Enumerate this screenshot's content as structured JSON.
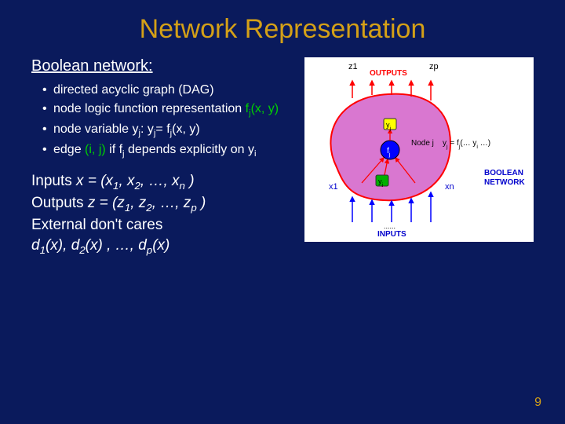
{
  "title": "Network Representation",
  "heading": "Boolean network:",
  "bullets": {
    "b0": "directed acyclic graph (DAG)",
    "b1_pre": "node logic function representation ",
    "b1_fj": "f",
    "b1_fj_sub": "j",
    "b1_fj_args": "(x, y)",
    "b2_pre": "node variable ",
    "b2_yj": "y",
    "b2_yj_sub": "j",
    "b2_mid": ": y",
    "b2_mid_sub": "j",
    "b2_eq": "= f",
    "b2_eq_sub": "j",
    "b2_args": "(x, y)",
    "b3_pre": "edge ",
    "b3_edge": "(i, j)",
    "b3_if": " if f",
    "b3_if_sub": "j",
    "b3_dep": " depends explicitly on y",
    "b3_dep_sub": "i"
  },
  "io": {
    "inputs_label": "Inputs ",
    "inputs_expr": "x = (x",
    "inputs_s1": "1",
    "inputs_c1": ", x",
    "inputs_s2": "2",
    "inputs_rest": ", …, x",
    "inputs_sn": "n",
    "inputs_end": " )",
    "outputs_label": "Outputs ",
    "outputs_expr": "z = (z",
    "outputs_s1": "1",
    "outputs_c1": ", z",
    "outputs_s2": "2",
    "outputs_rest": ", …, z",
    "outputs_sp": "p",
    "outputs_end": " )",
    "dc_label": "External don't cares",
    "dc_expr": "d",
    "dc_s1": "1",
    "dc_x1": "(x), d",
    "dc_s2": "2",
    "dc_x2": "(x) , …, d",
    "dc_sp": "p",
    "dc_end": "(x)"
  },
  "diagram": {
    "z1": "z1",
    "zp": "zp",
    "outputs": "OUTPUTS",
    "inputs": "INPUTS",
    "x1": "x1",
    "xn": "xn",
    "nodej": "Node j",
    "yeq": "y",
    "yeq_sub": "j",
    "yeq_mid": " = f",
    "yeq_sub2": "j",
    "yeq_args": "(… y",
    "yeq_args_sub": "i",
    "yeq_end": " …)",
    "bool_net": "BOOLEAN NETWORK",
    "yj": "y",
    "yj_sub": "j",
    "fj": "f",
    "fj_sub": "j",
    "yi": "y",
    "yi_sub": "i",
    "dots": "......",
    "blob_fill": "#d977d0",
    "blob_stroke": "#ff0000",
    "node_blue": "#0000ff",
    "node_green": "#00b000",
    "node_yellow": "#ffff00",
    "arrow_red": "#ff0000",
    "arrow_blue": "#0000ff",
    "text_red": "#ff0000",
    "text_blue": "#0000cc",
    "text_black": "#000000"
  },
  "page_num": "9"
}
